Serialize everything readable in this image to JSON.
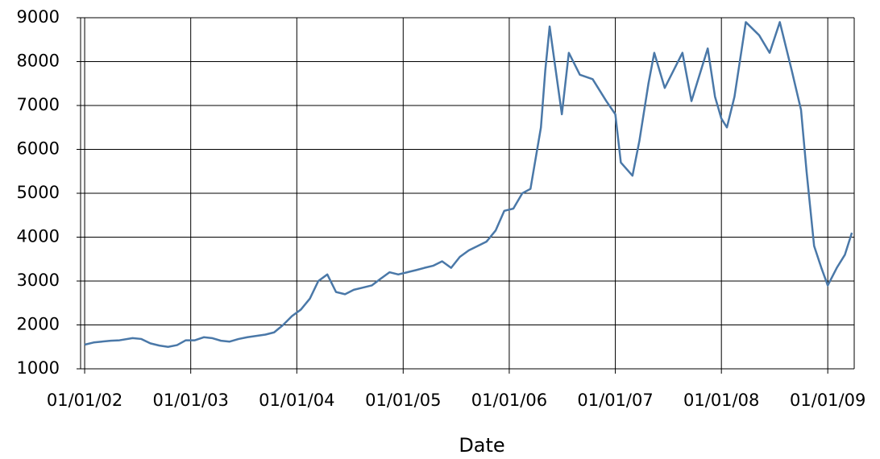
{
  "chart_data": {
    "type": "line",
    "x_label": "Date",
    "color": "#4a78a8",
    "grid": true,
    "xlim": [
      "2001-12-18",
      "2009-04-02"
    ],
    "xticks": [
      {
        "value": "2002-01-01",
        "label": "01/01/02"
      },
      {
        "value": "2003-01-01",
        "label": "01/01/03"
      },
      {
        "value": "2004-01-01",
        "label": "01/01/04"
      },
      {
        "value": "2005-01-01",
        "label": "01/01/05"
      },
      {
        "value": "2006-01-01",
        "label": "01/01/06"
      },
      {
        "value": "2007-01-01",
        "label": "01/01/07"
      },
      {
        "value": "2008-01-01",
        "label": "01/01/08"
      },
      {
        "value": "2009-01-01",
        "label": "01/01/09"
      }
    ],
    "ylim": [
      1000,
      9000
    ],
    "yticks": [
      1000,
      2000,
      3000,
      4000,
      5000,
      6000,
      7000,
      8000,
      9000
    ],
    "x": [
      "2002-01-01",
      "2002-02-01",
      "2002-03-01",
      "2002-04-01",
      "2002-05-01",
      "2002-06-15",
      "2002-07-15",
      "2002-08-15",
      "2002-09-15",
      "2002-10-15",
      "2002-11-15",
      "2002-12-15",
      "2003-01-15",
      "2003-02-15",
      "2003-03-15",
      "2003-04-15",
      "2003-05-15",
      "2003-06-15",
      "2003-07-15",
      "2003-08-15",
      "2003-09-15",
      "2003-10-15",
      "2003-11-15",
      "2003-12-15",
      "2004-01-15",
      "2004-02-15",
      "2004-03-15",
      "2004-04-15",
      "2004-05-15",
      "2004-06-15",
      "2004-07-15",
      "2004-08-15",
      "2004-09-15",
      "2004-10-15",
      "2004-11-15",
      "2004-12-15",
      "2005-01-15",
      "2005-02-15",
      "2005-03-15",
      "2005-04-15",
      "2005-05-15",
      "2005-06-15",
      "2005-07-15",
      "2005-08-15",
      "2005-09-15",
      "2005-10-15",
      "2005-11-15",
      "2005-12-15",
      "2006-01-15",
      "2006-02-15",
      "2006-03-15",
      "2006-04-20",
      "2006-05-05",
      "2006-05-20",
      "2006-06-10",
      "2006-07-01",
      "2006-07-25",
      "2006-09-01",
      "2006-10-15",
      "2006-12-01",
      "2007-01-01",
      "2007-01-20",
      "2007-03-01",
      "2007-03-25",
      "2007-04-25",
      "2007-05-15",
      "2007-06-20",
      "2007-08-20",
      "2007-09-20",
      "2007-11-15",
      "2007-12-10",
      "2008-01-01",
      "2008-01-20",
      "2008-02-15",
      "2008-03-25",
      "2008-05-10",
      "2008-06-15",
      "2008-07-20",
      "2008-08-30",
      "2008-10-01",
      "2008-10-20",
      "2008-11-15",
      "2008-12-10",
      "2009-01-01",
      "2009-02-01",
      "2009-03-01",
      "2009-03-25"
    ],
    "values": [
      1550,
      1600,
      1620,
      1640,
      1650,
      1700,
      1680,
      1580,
      1530,
      1500,
      1540,
      1650,
      1650,
      1720,
      1700,
      1640,
      1620,
      1680,
      1720,
      1750,
      1780,
      1830,
      2000,
      2200,
      2350,
      2600,
      3000,
      3150,
      2750,
      2700,
      2800,
      2850,
      2900,
      3050,
      3200,
      3150,
      3200,
      3250,
      3300,
      3350,
      3450,
      3300,
      3550,
      3700,
      3800,
      3900,
      4150,
      4600,
      4650,
      5000,
      5100,
      6500,
      7800,
      8800,
      7800,
      6800,
      8200,
      7700,
      7600,
      7100,
      6800,
      5700,
      5400,
      6200,
      7500,
      8200,
      7400,
      8200,
      7100,
      8300,
      7200,
      6700,
      6500,
      7200,
      8900,
      8600,
      8200,
      8900,
      7800,
      6900,
      5500,
      3800,
      3300,
      2900,
      3300,
      3600,
      4100
    ]
  }
}
